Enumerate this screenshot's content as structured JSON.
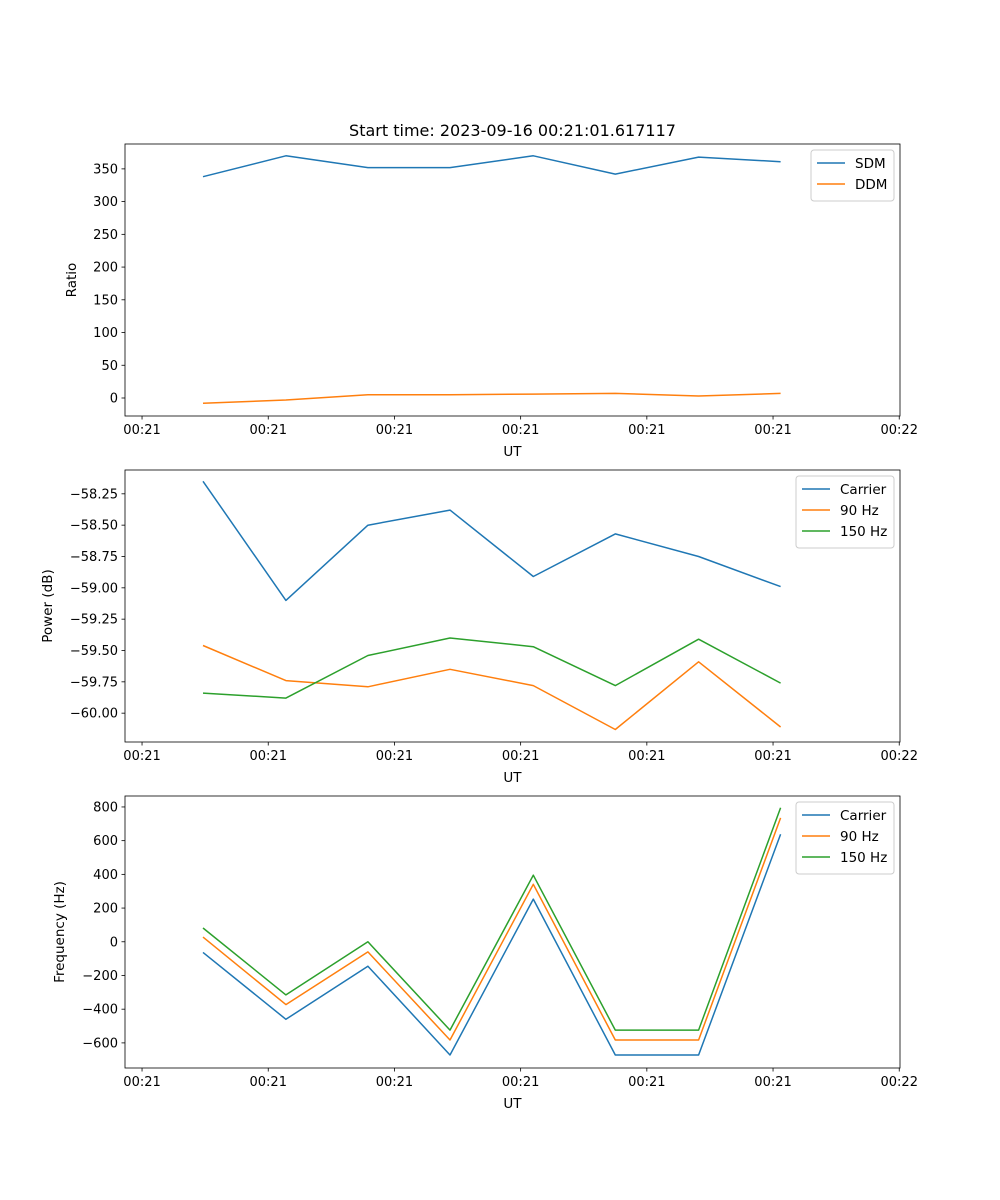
{
  "title": "Start time: 2023-09-16 00:21:01.617117",
  "colors": {
    "blue": "#1f77b4",
    "orange": "#ff7f0e",
    "green": "#2ca02c"
  },
  "chart_data": [
    {
      "type": "line",
      "xlabel": "UT",
      "ylabel": "Ratio",
      "x_tick_positions": [
        0,
        1,
        2,
        3,
        4,
        5,
        6
      ],
      "x_tick_labels": [
        "00:21",
        "00:21",
        "00:21",
        "00:21",
        "00:21",
        "00:21",
        "00:22"
      ],
      "xlim": [
        -0.135,
        6.006
      ],
      "ylim": [
        -27.5,
        388
      ],
      "y_ticks": [
        0,
        50,
        100,
        150,
        200,
        250,
        300,
        350
      ],
      "y_tick_labels": [
        "0",
        "50",
        "100",
        "150",
        "200",
        "250",
        "300",
        "350"
      ],
      "x": [
        0.483,
        1.14,
        1.79,
        2.44,
        3.1,
        3.75,
        4.41,
        5.06
      ],
      "legend_position": "top-right",
      "series": [
        {
          "name": "SDM",
          "color": "#1f77b4",
          "values": [
            338,
            370,
            352,
            352,
            370,
            342,
            368,
            361
          ]
        },
        {
          "name": "DDM",
          "color": "#ff7f0e",
          "values": [
            -8,
            -3,
            5,
            5,
            6,
            7,
            3,
            7
          ]
        }
      ]
    },
    {
      "type": "line",
      "xlabel": "UT",
      "ylabel": "Power (dB)",
      "x_tick_positions": [
        0,
        1,
        2,
        3,
        4,
        5,
        6
      ],
      "x_tick_labels": [
        "00:21",
        "00:21",
        "00:21",
        "00:21",
        "00:21",
        "00:21",
        "00:22"
      ],
      "xlim": [
        -0.135,
        6.006
      ],
      "ylim": [
        -60.23,
        -58.06
      ],
      "y_ticks": [
        -60.0,
        -59.75,
        -59.5,
        -59.25,
        -59.0,
        -58.75,
        -58.5,
        -58.25
      ],
      "y_tick_labels": [
        "−60.00",
        "−59.75",
        "−59.50",
        "−59.25",
        "−59.00",
        "−58.75",
        "−58.50",
        "−58.25"
      ],
      "x": [
        0.483,
        1.14,
        1.79,
        2.44,
        3.1,
        3.75,
        4.41,
        5.06
      ],
      "legend_position": "top-right",
      "series": [
        {
          "name": "Carrier",
          "color": "#1f77b4",
          "values": [
            -58.15,
            -59.1,
            -58.5,
            -58.38,
            -58.91,
            -58.57,
            -58.75,
            -58.99
          ]
        },
        {
          "name": "90 Hz",
          "color": "#ff7f0e",
          "values": [
            -59.46,
            -59.74,
            -59.79,
            -59.65,
            -59.78,
            -60.13,
            -59.59,
            -60.11
          ]
        },
        {
          "name": "150 Hz",
          "color": "#2ca02c",
          "values": [
            -59.84,
            -59.88,
            -59.54,
            -59.4,
            -59.47,
            -59.78,
            -59.41,
            -59.76
          ]
        }
      ]
    },
    {
      "type": "line",
      "xlabel": "UT",
      "ylabel": "Frequency (Hz)",
      "x_tick_positions": [
        0,
        1,
        2,
        3,
        4,
        5,
        6
      ],
      "x_tick_labels": [
        "00:21",
        "00:21",
        "00:21",
        "00:21",
        "00:21",
        "00:21",
        "00:22"
      ],
      "xlim": [
        -0.135,
        6.006
      ],
      "ylim": [
        -749,
        865
      ],
      "y_ticks": [
        -600,
        -400,
        -200,
        0,
        200,
        400,
        600,
        800
      ],
      "y_tick_labels": [
        "−600",
        "−400",
        "−200",
        "0",
        "200",
        "400",
        "600",
        "800"
      ],
      "x": [
        0.483,
        1.14,
        1.79,
        2.44,
        3.1,
        3.75,
        4.41,
        5.06
      ],
      "legend_position": "top-right",
      "series": [
        {
          "name": "Carrier",
          "color": "#1f77b4",
          "values": [
            -63,
            -460,
            -145,
            -672,
            253,
            -672,
            -672,
            638
          ]
        },
        {
          "name": "90 Hz",
          "color": "#ff7f0e",
          "values": [
            28,
            -373,
            -60,
            -583,
            341,
            -583,
            -583,
            735
          ]
        },
        {
          "name": "150 Hz",
          "color": "#2ca02c",
          "values": [
            82,
            -315,
            0,
            -524,
            395,
            -524,
            -524,
            795
          ]
        }
      ]
    }
  ]
}
